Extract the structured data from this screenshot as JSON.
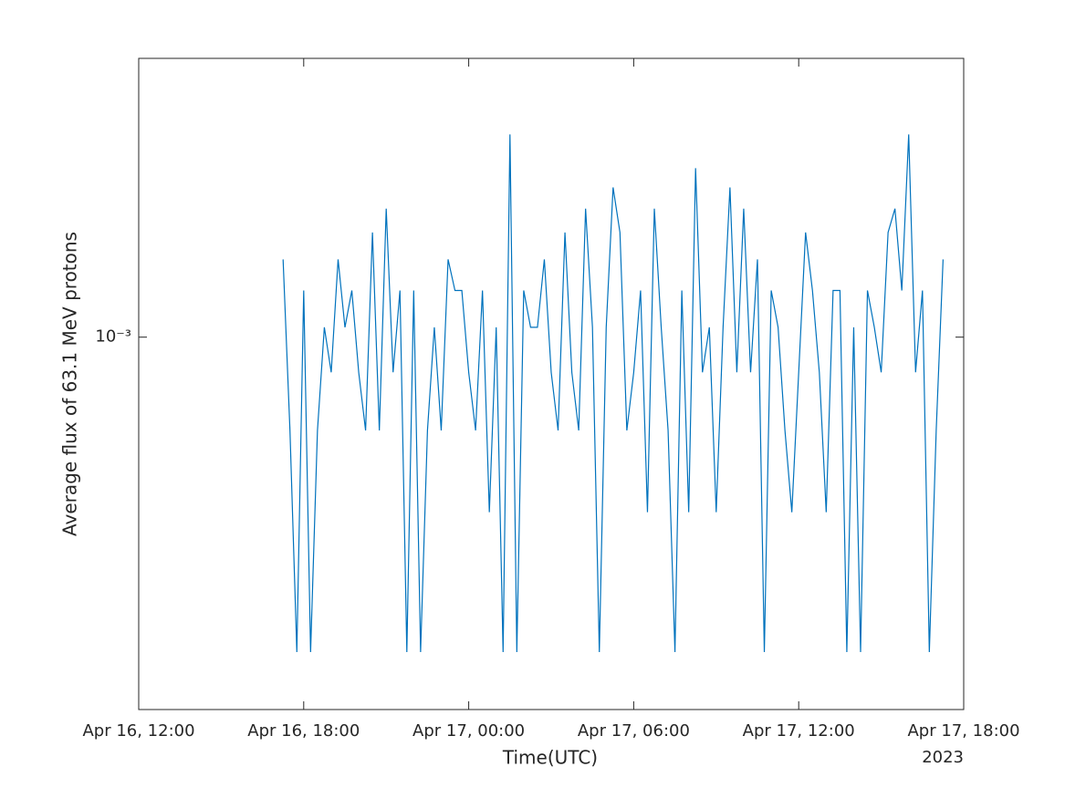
{
  "chart_data": {
    "type": "line",
    "xlabel": "Time(UTC)",
    "ylabel": "Average flux of 63.1 MeV protons",
    "log_y": true,
    "xlim": [
      "2023-04-16T12:00",
      "2023-04-17T18:00"
    ],
    "xticks": [
      {
        "value": "2023-04-16T12:00",
        "label": "Apr 16, 12:00"
      },
      {
        "value": "2023-04-16T18:00",
        "label": "Apr 16, 18:00"
      },
      {
        "value": "2023-04-17T00:00",
        "label": "Apr 17, 00:00"
      },
      {
        "value": "2023-04-17T06:00",
        "label": "Apr 17, 06:00"
      },
      {
        "value": "2023-04-17T12:00",
        "label": "Apr 17, 12:00"
      },
      {
        "value": "2023-04-17T18:00",
        "label": "Apr 17, 18:00"
      }
    ],
    "x_year_label": "2023",
    "ylim": [
      0.000158,
      0.00398
    ],
    "yticks": [
      {
        "value": 0.001,
        "label": "10⁻³"
      }
    ],
    "x": [
      "2023-04-16T17:15",
      "2023-04-16T17:30",
      "2023-04-16T17:45",
      "2023-04-16T18:00",
      "2023-04-16T18:15",
      "2023-04-16T18:30",
      "2023-04-16T18:45",
      "2023-04-16T19:00",
      "2023-04-16T19:15",
      "2023-04-16T19:30",
      "2023-04-16T19:45",
      "2023-04-16T20:00",
      "2023-04-16T20:15",
      "2023-04-16T20:30",
      "2023-04-16T20:45",
      "2023-04-16T21:00",
      "2023-04-16T21:15",
      "2023-04-16T21:30",
      "2023-04-16T21:45",
      "2023-04-16T22:00",
      "2023-04-16T22:15",
      "2023-04-16T22:30",
      "2023-04-16T22:45",
      "2023-04-16T23:00",
      "2023-04-16T23:15",
      "2023-04-16T23:30",
      "2023-04-16T23:45",
      "2023-04-17T00:00",
      "2023-04-17T00:15",
      "2023-04-17T00:30",
      "2023-04-17T00:45",
      "2023-04-17T01:00",
      "2023-04-17T01:15",
      "2023-04-17T01:30",
      "2023-04-17T01:45",
      "2023-04-17T02:00",
      "2023-04-17T02:15",
      "2023-04-17T02:30",
      "2023-04-17T02:45",
      "2023-04-17T03:00",
      "2023-04-17T03:15",
      "2023-04-17T03:30",
      "2023-04-17T03:45",
      "2023-04-17T04:00",
      "2023-04-17T04:15",
      "2023-04-17T04:30",
      "2023-04-17T04:45",
      "2023-04-17T05:00",
      "2023-04-17T05:15",
      "2023-04-17T05:30",
      "2023-04-17T05:45",
      "2023-04-17T06:00",
      "2023-04-17T06:15",
      "2023-04-17T06:30",
      "2023-04-17T06:45",
      "2023-04-17T07:00",
      "2023-04-17T07:15",
      "2023-04-17T07:30",
      "2023-04-17T07:45",
      "2023-04-17T08:00",
      "2023-04-17T08:15",
      "2023-04-17T08:30",
      "2023-04-17T08:45",
      "2023-04-17T09:00",
      "2023-04-17T09:15",
      "2023-04-17T09:30",
      "2023-04-17T09:45",
      "2023-04-17T10:00",
      "2023-04-17T10:15",
      "2023-04-17T10:30",
      "2023-04-17T10:45",
      "2023-04-17T11:00",
      "2023-04-17T11:15",
      "2023-04-17T11:30",
      "2023-04-17T11:45",
      "2023-04-17T12:00",
      "2023-04-17T12:15",
      "2023-04-17T12:30",
      "2023-04-17T12:45",
      "2023-04-17T13:00",
      "2023-04-17T13:15",
      "2023-04-17T13:30",
      "2023-04-17T13:45",
      "2023-04-17T14:00",
      "2023-04-17T14:15",
      "2023-04-17T14:30",
      "2023-04-17T14:45",
      "2023-04-17T15:00",
      "2023-04-17T15:15",
      "2023-04-17T15:30",
      "2023-04-17T15:45",
      "2023-04-17T16:00",
      "2023-04-17T16:15",
      "2023-04-17T16:30",
      "2023-04-17T16:45",
      "2023-04-17T17:00",
      "2023-04-17T17:15"
    ],
    "series": [
      {
        "name": "63.1 MeV",
        "color": "#0072bd",
        "values": [
          0.00147,
          0.00063,
          0.00021,
          0.00126,
          0.00021,
          0.00063,
          0.00105,
          0.00084,
          0.00147,
          0.00105,
          0.00126,
          0.00084,
          0.00063,
          0.00168,
          0.00063,
          0.00189,
          0.00084,
          0.00126,
          0.00021,
          0.00126,
          0.00021,
          0.00063,
          0.00105,
          0.00063,
          0.00147,
          0.00126,
          0.00126,
          0.00084,
          0.00063,
          0.00126,
          0.00042,
          0.00105,
          0.00021,
          0.00273,
          0.00021,
          0.00126,
          0.00105,
          0.00105,
          0.00147,
          0.00084,
          0.00063,
          0.00168,
          0.00084,
          0.00063,
          0.00189,
          0.00105,
          0.00021,
          0.00105,
          0.0021,
          0.00168,
          0.00063,
          0.00084,
          0.00126,
          0.00042,
          0.00189,
          0.00105,
          0.00063,
          0.00021,
          0.00126,
          0.00042,
          0.00231,
          0.00084,
          0.00105,
          0.00042,
          0.00105,
          0.0021,
          0.00084,
          0.00189,
          0.00084,
          0.00147,
          0.00021,
          0.00126,
          0.00105,
          0.00063,
          0.00042,
          0.00084,
          0.00168,
          0.00126,
          0.00084,
          0.00042,
          0.00126,
          0.00126,
          0.00021,
          0.00105,
          0.00021,
          0.00126,
          0.00105,
          0.00084,
          0.00168,
          0.00189,
          0.00126,
          0.00273,
          0.00084,
          0.00126,
          0.00021,
          0.00063,
          0.00147
        ]
      }
    ]
  }
}
